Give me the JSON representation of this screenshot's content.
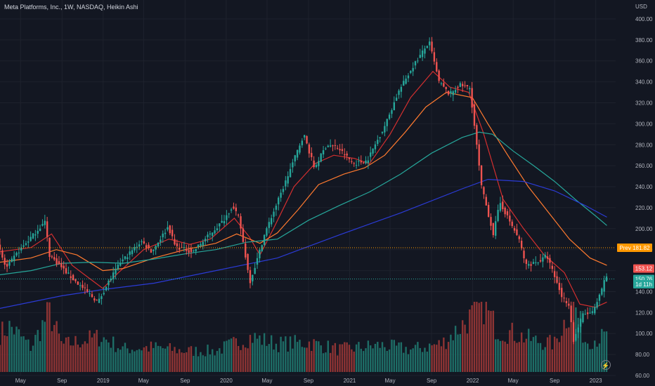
{
  "header": {
    "title": "Meta Platforms, Inc., 1W, NASDAQ, Heikin Ashi",
    "currency": "USD"
  },
  "icons": {
    "replay": "lightning-icon"
  },
  "colors": {
    "background": "#131722",
    "up": "#26a69a",
    "down": "#ef5350",
    "vol_up": "#1e6e67",
    "vol_down": "#8e3434",
    "ma20": "#d32f2f",
    "ma50": "#ff7a2f",
    "ma100": "#26a69a",
    "ma200": "#2b3bd6",
    "prev_line": "#ff9800",
    "last_line": "#26a69a"
  },
  "chart_data": {
    "type": "candlestick",
    "ylim": [
      60,
      410
    ],
    "xlim": [
      "2018-03-01",
      "2023-03-01"
    ],
    "y_ticks": [
      60,
      80,
      100,
      120,
      140,
      160,
      180,
      200,
      220,
      240,
      260,
      280,
      300,
      320,
      340,
      360,
      380,
      400
    ],
    "y_tick_labels": [
      "60.00",
      "80.00",
      "100.00",
      "120.00",
      "140.00",
      "160.00",
      "180.00",
      "200.00",
      "220.00",
      "240.00",
      "260.00",
      "280.00",
      "300.00",
      "320.00",
      "340.00",
      "360.00",
      "380.00",
      "400.00"
    ],
    "x_ticks": [
      {
        "date": "2018-05-01",
        "label": "May"
      },
      {
        "date": "2018-09-01",
        "label": "Sep"
      },
      {
        "date": "2019-01-01",
        "label": "2019"
      },
      {
        "date": "2019-05-01",
        "label": "May"
      },
      {
        "date": "2019-09-01",
        "label": "Sep"
      },
      {
        "date": "2020-01-01",
        "label": "2020"
      },
      {
        "date": "2020-05-01",
        "label": "May"
      },
      {
        "date": "2020-09-01",
        "label": "Sep"
      },
      {
        "date": "2021-01-01",
        "label": "2021"
      },
      {
        "date": "2021-05-01",
        "label": "May"
      },
      {
        "date": "2021-09-01",
        "label": "Sep"
      },
      {
        "date": "2022-01-01",
        "label": "2022"
      },
      {
        "date": "2022-05-01",
        "label": "May"
      },
      {
        "date": "2022-09-01",
        "label": "Sep"
      },
      {
        "date": "2023-01-01",
        "label": "2023"
      }
    ],
    "price_path": [
      [
        "2018-03-01",
        185
      ],
      [
        "2018-03-26",
        162
      ],
      [
        "2018-05-01",
        178
      ],
      [
        "2018-07-20",
        207
      ],
      [
        "2018-08-01",
        175
      ],
      [
        "2018-10-10",
        152
      ],
      [
        "2018-12-24",
        130
      ],
      [
        "2019-01-25",
        150
      ],
      [
        "2019-03-01",
        168
      ],
      [
        "2019-05-01",
        188
      ],
      [
        "2019-06-01",
        178
      ],
      [
        "2019-07-20",
        202
      ],
      [
        "2019-08-10",
        183
      ],
      [
        "2019-10-01",
        178
      ],
      [
        "2019-12-31",
        208
      ],
      [
        "2020-01-25",
        221
      ],
      [
        "2020-02-15",
        210
      ],
      [
        "2020-03-18",
        149
      ],
      [
        "2020-04-10",
        172
      ],
      [
        "2020-05-01",
        195
      ],
      [
        "2020-06-20",
        235
      ],
      [
        "2020-08-25",
        290
      ],
      [
        "2020-09-25",
        258
      ],
      [
        "2020-11-01",
        280
      ],
      [
        "2020-12-01",
        278
      ],
      [
        "2021-01-20",
        262
      ],
      [
        "2021-03-01",
        265
      ],
      [
        "2021-04-25",
        300
      ],
      [
        "2021-06-01",
        330
      ],
      [
        "2021-07-15",
        355
      ],
      [
        "2021-09-01",
        378
      ],
      [
        "2021-09-30",
        340
      ],
      [
        "2021-10-31",
        328
      ],
      [
        "2021-11-30",
        337
      ],
      [
        "2021-12-31",
        334
      ],
      [
        "2022-02-03",
        240
      ],
      [
        "2022-03-10",
        195
      ],
      [
        "2022-03-30",
        225
      ],
      [
        "2022-05-01",
        205
      ],
      [
        "2022-05-25",
        190
      ],
      [
        "2022-06-15",
        165
      ],
      [
        "2022-08-01",
        170
      ],
      [
        "2022-08-15",
        175
      ],
      [
        "2022-09-30",
        135
      ],
      [
        "2022-10-20",
        128
      ],
      [
        "2022-11-03",
        93
      ],
      [
        "2022-11-30",
        118
      ],
      [
        "2022-12-31",
        120
      ],
      [
        "2023-01-25",
        140
      ],
      [
        "2023-02-03",
        153
      ]
    ],
    "moving_averages": [
      {
        "color": "#d32f2f",
        "points": [
          [
            "2018-03-01",
            178
          ],
          [
            "2018-06-01",
            182
          ],
          [
            "2018-08-01",
            195
          ],
          [
            "2018-10-01",
            165
          ],
          [
            "2018-12-31",
            143
          ],
          [
            "2019-02-15",
            158
          ],
          [
            "2019-05-01",
            180
          ],
          [
            "2019-07-15",
            190
          ],
          [
            "2019-09-15",
            185
          ],
          [
            "2019-11-15",
            190
          ],
          [
            "2020-01-25",
            210
          ],
          [
            "2020-03-10",
            192
          ],
          [
            "2020-04-10",
            175
          ],
          [
            "2020-05-20",
            200
          ],
          [
            "2020-07-20",
            240
          ],
          [
            "2020-09-20",
            262
          ],
          [
            "2020-11-15",
            270
          ],
          [
            "2021-01-15",
            267
          ],
          [
            "2021-03-01",
            262
          ],
          [
            "2021-05-01",
            290
          ],
          [
            "2021-07-01",
            325
          ],
          [
            "2021-09-05",
            350
          ],
          [
            "2021-10-25",
            335
          ],
          [
            "2021-12-20",
            330
          ],
          [
            "2022-02-01",
            292
          ],
          [
            "2022-04-01",
            228
          ],
          [
            "2022-06-01",
            200
          ],
          [
            "2022-08-01",
            175
          ],
          [
            "2022-09-30",
            158
          ],
          [
            "2022-11-15",
            128
          ],
          [
            "2022-12-31",
            125
          ],
          [
            "2023-02-03",
            130
          ]
        ]
      },
      {
        "color": "#ff7a2f",
        "points": [
          [
            "2018-03-01",
            168
          ],
          [
            "2018-06-01",
            172
          ],
          [
            "2018-08-15",
            180
          ],
          [
            "2018-10-15",
            175
          ],
          [
            "2018-12-31",
            160
          ],
          [
            "2019-03-01",
            162
          ],
          [
            "2019-06-01",
            172
          ],
          [
            "2019-09-01",
            180
          ],
          [
            "2019-12-01",
            186
          ],
          [
            "2020-02-01",
            195
          ],
          [
            "2020-04-10",
            186
          ],
          [
            "2020-06-01",
            196
          ],
          [
            "2020-08-01",
            218
          ],
          [
            "2020-10-01",
            242
          ],
          [
            "2020-12-15",
            252
          ],
          [
            "2021-02-15",
            258
          ],
          [
            "2021-04-15",
            270
          ],
          [
            "2021-06-15",
            292
          ],
          [
            "2021-08-15",
            316
          ],
          [
            "2021-10-15",
            330
          ],
          [
            "2021-12-31",
            325
          ],
          [
            "2022-02-15",
            300
          ],
          [
            "2022-04-15",
            270
          ],
          [
            "2022-06-15",
            240
          ],
          [
            "2022-08-15",
            215
          ],
          [
            "2022-10-15",
            190
          ],
          [
            "2022-12-15",
            172
          ],
          [
            "2023-02-03",
            165
          ]
        ]
      },
      {
        "color": "#26a69a",
        "points": [
          [
            "2018-03-01",
            156
          ],
          [
            "2018-06-01",
            160
          ],
          [
            "2018-09-01",
            167
          ],
          [
            "2018-12-01",
            168
          ],
          [
            "2019-03-01",
            167
          ],
          [
            "2019-06-01",
            171
          ],
          [
            "2019-09-01",
            176
          ],
          [
            "2019-12-01",
            180
          ],
          [
            "2020-03-01",
            187
          ],
          [
            "2020-06-01",
            190
          ],
          [
            "2020-09-01",
            208
          ],
          [
            "2020-12-01",
            222
          ],
          [
            "2021-03-01",
            235
          ],
          [
            "2021-06-01",
            252
          ],
          [
            "2021-09-01",
            272
          ],
          [
            "2021-12-01",
            287
          ],
          [
            "2022-01-20",
            292
          ],
          [
            "2022-03-01",
            290
          ],
          [
            "2022-05-01",
            274
          ],
          [
            "2022-07-01",
            260
          ],
          [
            "2022-09-01",
            245
          ],
          [
            "2022-11-01",
            228
          ],
          [
            "2023-01-01",
            212
          ],
          [
            "2023-02-03",
            203
          ]
        ]
      },
      {
        "color": "#2b3bd6",
        "points": [
          [
            "2018-03-01",
            124
          ],
          [
            "2018-09-01",
            136
          ],
          [
            "2019-01-01",
            142
          ],
          [
            "2019-06-01",
            148
          ],
          [
            "2019-12-01",
            160
          ],
          [
            "2020-06-01",
            172
          ],
          [
            "2020-12-01",
            194
          ],
          [
            "2021-06-01",
            215
          ],
          [
            "2021-12-01",
            238
          ],
          [
            "2022-02-15",
            247
          ],
          [
            "2022-06-01",
            245
          ],
          [
            "2022-09-01",
            236
          ],
          [
            "2022-12-01",
            222
          ],
          [
            "2023-02-03",
            211
          ]
        ]
      }
    ],
    "volume_levels": [
      [
        "2018-03-01",
        0.55
      ],
      [
        "2018-04-01",
        0.65
      ],
      [
        "2018-06-01",
        0.35
      ],
      [
        "2018-07-25",
        0.85
      ],
      [
        "2018-09-01",
        0.38
      ],
      [
        "2018-11-01",
        0.45
      ],
      [
        "2018-12-25",
        0.5
      ],
      [
        "2019-03-01",
        0.33
      ],
      [
        "2019-06-01",
        0.35
      ],
      [
        "2019-09-01",
        0.3
      ],
      [
        "2019-12-01",
        0.3
      ],
      [
        "2020-03-15",
        0.5
      ],
      [
        "2020-06-01",
        0.4
      ],
      [
        "2020-09-01",
        0.42
      ],
      [
        "2020-12-01",
        0.32
      ],
      [
        "2021-04-01",
        0.38
      ],
      [
        "2021-07-01",
        0.32
      ],
      [
        "2021-10-01",
        0.4
      ],
      [
        "2022-02-03",
        0.95
      ],
      [
        "2022-03-15",
        0.6
      ],
      [
        "2022-05-01",
        0.55
      ],
      [
        "2022-07-01",
        0.45
      ],
      [
        "2022-09-01",
        0.4
      ],
      [
        "2022-10-27",
        1.0
      ],
      [
        "2022-12-01",
        0.45
      ],
      [
        "2023-02-03",
        0.5
      ]
    ],
    "price_labels": [
      {
        "label": "Prev",
        "value": "181.82",
        "y": 181.82,
        "color": "#ff9800",
        "text_color": "#131722"
      },
      {
        "label": "",
        "value": "153.12",
        "y": 162,
        "color": "#ef5350",
        "text_color": "#ffffff"
      },
      {
        "label": "",
        "value": "150.76",
        "y": 152,
        "color": "#26a69a",
        "text_color": "#ffffff"
      },
      {
        "label": "",
        "value": "1d 11h",
        "y": 147,
        "color": "#26a69a",
        "text_color": "#ffffff"
      }
    ]
  }
}
